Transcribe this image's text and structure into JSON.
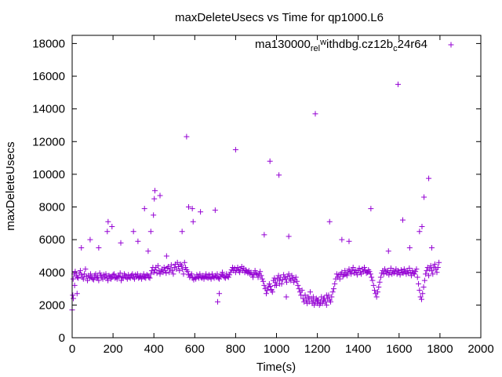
{
  "chart_data": {
    "type": "scatter",
    "title": "maxDeleteUsecs vs Time for qp1000.L6",
    "xlabel": "Time(s)",
    "ylabel": "maxDeleteUsecs",
    "xlim": [
      0,
      2000
    ],
    "ylim": [
      0,
      18500
    ],
    "xticks": [
      0,
      200,
      400,
      600,
      800,
      1000,
      1200,
      1400,
      1600,
      1800,
      2000
    ],
    "yticks": [
      0,
      2000,
      4000,
      6000,
      8000,
      10000,
      12000,
      14000,
      16000,
      18000
    ],
    "xtick_labels": [
      "0",
      "200",
      "400",
      "600",
      "800",
      "1000",
      "1200",
      "1400",
      "1600",
      "1800",
      "2000"
    ],
    "ytick_labels": [
      "0",
      "2000",
      "4000",
      "6000",
      "8000",
      "10000",
      "12000",
      "14000",
      "16000",
      "18000"
    ],
    "legend_position": "top-right",
    "grid": false,
    "series": [
      {
        "name": "ma130000_rel_withdbg.cz12b_c24r64",
        "legend_base": "ma130000",
        "legend_parts": [
          {
            "sub": "rel",
            "text": "ithdbg.cz12b",
            "sup": "w"
          },
          {
            "sub": "c",
            "text": "24r64",
            "sup": ""
          }
        ],
        "color": "#9400d3",
        "marker": "+",
        "x": [
          0,
          5,
          10,
          15,
          20,
          25,
          30,
          35,
          40,
          45,
          50,
          55,
          60,
          65,
          70,
          75,
          80,
          85,
          90,
          95,
          100,
          105,
          110,
          115,
          120,
          125,
          130,
          135,
          140,
          145,
          150,
          155,
          160,
          165,
          170,
          175,
          180,
          185,
          190,
          195,
          200,
          205,
          210,
          215,
          220,
          225,
          230,
          235,
          240,
          245,
          250,
          255,
          260,
          265,
          270,
          275,
          280,
          285,
          290,
          295,
          300,
          305,
          310,
          315,
          320,
          325,
          330,
          335,
          340,
          345,
          350,
          355,
          360,
          365,
          370,
          375,
          380,
          385,
          390,
          395,
          400,
          405,
          410,
          415,
          420,
          425,
          430,
          435,
          440,
          445,
          450,
          455,
          460,
          465,
          470,
          475,
          480,
          485,
          490,
          495,
          500,
          505,
          510,
          515,
          520,
          525,
          530,
          535,
          540,
          545,
          550,
          555,
          560,
          565,
          570,
          575,
          580,
          585,
          590,
          595,
          600,
          605,
          610,
          615,
          620,
          625,
          630,
          635,
          640,
          645,
          650,
          655,
          660,
          665,
          670,
          675,
          680,
          685,
          690,
          695,
          700,
          705,
          710,
          715,
          720,
          725,
          730,
          735,
          740,
          745,
          750,
          755,
          760,
          765,
          770,
          775,
          780,
          785,
          790,
          795,
          800,
          805,
          810,
          815,
          820,
          825,
          830,
          835,
          840,
          845,
          850,
          855,
          860,
          865,
          870,
          875,
          880,
          885,
          890,
          895,
          900,
          905,
          910,
          915,
          920,
          925,
          930,
          935,
          940,
          945,
          950,
          955,
          960,
          965,
          970,
          975,
          980,
          985,
          990,
          995,
          1000,
          1005,
          1010,
          1015,
          1020,
          1025,
          1030,
          1035,
          1040,
          1045,
          1050,
          1055,
          1060,
          1065,
          1070,
          1075,
          1080,
          1085,
          1090,
          1095,
          1100,
          1105,
          1110,
          1115,
          1120,
          1125,
          1130,
          1135,
          1140,
          1145,
          1150,
          1155,
          1160,
          1165,
          1170,
          1175,
          1180,
          1185,
          1190,
          1195,
          1200,
          1205,
          1210,
          1215,
          1220,
          1225,
          1230,
          1235,
          1240,
          1245,
          1250,
          1255,
          1260,
          1265,
          1270,
          1275,
          1280,
          1285,
          1290,
          1295,
          1300,
          1305,
          1310,
          1315,
          1320,
          1325,
          1330,
          1335,
          1340,
          1345,
          1350,
          1355,
          1360,
          1365,
          1370,
          1375,
          1380,
          1385,
          1390,
          1395,
          1400,
          1405,
          1410,
          1415,
          1420,
          1425,
          1430,
          1435,
          1440,
          1445,
          1450,
          1455,
          1460,
          1465,
          1470,
          1475,
          1480,
          1485,
          1490,
          1495,
          1500,
          1505,
          1510,
          1515,
          1520,
          1525,
          1530,
          1535,
          1540,
          1545,
          1550,
          1555,
          1560,
          1565,
          1570,
          1575,
          1580,
          1585,
          1590,
          1595,
          1600,
          1605,
          1610,
          1615,
          1620,
          1625,
          1630,
          1635,
          1640,
          1645,
          1650,
          1655,
          1660,
          1665,
          1670,
          1675,
          1680,
          1685,
          1690,
          1695,
          1700,
          1705,
          1710,
          1715,
          1720,
          1725,
          1730,
          1735,
          1740,
          1745,
          1750,
          1755,
          1760,
          1765,
          1770,
          1775,
          1780,
          1785,
          1790,
          1795,
          3,
          6,
          12,
          24,
          45,
          88,
          130,
          172,
          176,
          195,
          238,
          300,
          322,
          354,
          372,
          385,
          398,
          402,
          405,
          430,
          462,
          538,
          560,
          570,
          588,
          592,
          628,
          700,
          712,
          800,
          940,
          968,
          1012,
          1060,
          1190,
          1260,
          1320,
          1355,
          1462,
          1548,
          1595,
          1618,
          1652,
          1700,
          1712,
          1722,
          1745,
          1760,
          1180,
          1200,
          1215,
          1230,
          1245,
          1140,
          1160,
          720,
          975,
          992,
          1015,
          1048
        ],
        "y": [
          1700,
          3600,
          3900,
          4050,
          3800,
          3700,
          3650,
          3950,
          4100,
          3850,
          3700,
          3600,
          3900,
          4200,
          3750,
          3500,
          3800,
          3650,
          3900,
          3700,
          3600,
          3550,
          3800,
          3900,
          3650,
          3700,
          3500,
          3950,
          3800,
          3700,
          3600,
          3850,
          3700,
          3900,
          3650,
          3500,
          3800,
          3750,
          3600,
          3700,
          3850,
          3900,
          3650,
          3700,
          3600,
          3800,
          3750,
          3950,
          3500,
          3700,
          3650,
          3900,
          3800,
          3700,
          3600,
          3850,
          3700,
          3650,
          3800,
          3900,
          3700,
          3600,
          3850,
          3750,
          3900,
          3650,
          3700,
          3800,
          3600,
          3750,
          3900,
          3700,
          3650,
          3850,
          3800,
          3700,
          3650,
          3900,
          4100,
          4300,
          4000,
          4150,
          4300,
          3950,
          4400,
          4100,
          3900,
          4050,
          4200,
          4000,
          4300,
          4100,
          3950,
          4250,
          4350,
          4000,
          4200,
          4450,
          4100,
          3900,
          4300,
          4500,
          4200,
          4600,
          4350,
          4100,
          4500,
          4400,
          4200,
          3900,
          4600,
          4300,
          4150,
          4050,
          3850,
          3700,
          3800,
          3900,
          3650,
          3550,
          3700,
          3600,
          3850,
          3750,
          3650,
          3900,
          3700,
          3650,
          3800,
          3600,
          3750,
          3900,
          3700,
          3650,
          3850,
          3700,
          3600,
          3900,
          3750,
          3650,
          3800,
          3700,
          3900,
          3650,
          3600,
          3750,
          3850,
          4000,
          3800,
          3700,
          3650,
          3900,
          3750,
          3700,
          3850,
          4000,
          4150,
          4300,
          4100,
          4250,
          4000,
          4150,
          4300,
          4100,
          4000,
          4200,
          4350,
          4100,
          4250,
          4000,
          4150,
          4050,
          3950,
          4100,
          3900,
          4000,
          3850,
          3700,
          3900,
          4100,
          3950,
          3850,
          3700,
          3900,
          4050,
          3800,
          3600,
          3450,
          3200,
          3000,
          2700,
          2900,
          3100,
          3300,
          3150,
          2950,
          2800,
          3500,
          3650,
          3400,
          3200,
          3600,
          3800,
          3500,
          3700,
          3300,
          3550,
          3850,
          3700,
          3600,
          3400,
          3750,
          3900,
          3600,
          3500,
          3800,
          3650,
          3400,
          3550,
          3700,
          3450,
          3200,
          3000,
          2800,
          2600,
          2900,
          2400,
          2200,
          2600,
          2300,
          2100,
          2500,
          2200,
          2800,
          2400,
          2100,
          2300,
          2000,
          2200,
          2400,
          2100,
          2300,
          2000,
          2200,
          2500,
          2100,
          2300,
          2400,
          2200,
          2000,
          2400,
          2600,
          2300,
          2200,
          2500,
          2800,
          3000,
          3300,
          3600,
          3900,
          3700,
          3850,
          3600,
          3900,
          4000,
          3750,
          3850,
          4100,
          3900,
          3800,
          4000,
          4200,
          4050,
          3900,
          4100,
          4300,
          3950,
          4150,
          4000,
          3850,
          4100,
          4250,
          4000,
          3900,
          4200,
          4050,
          4300,
          4100,
          3950,
          4000,
          4150,
          4050,
          3900,
          3700,
          3500,
          3200,
          2900,
          2700,
          2500,
          2800,
          3100,
          3400,
          3700,
          3950,
          4100,
          3900,
          4200,
          4050,
          3950,
          4100,
          3850,
          4000,
          4250,
          3900,
          4100,
          3950,
          4050,
          4200,
          3900,
          4100,
          4000,
          3850,
          4150,
          4000,
          3950,
          4200,
          4050,
          3900,
          4100,
          3950,
          4250,
          4000,
          3800,
          4100,
          3950,
          3900,
          4050,
          4200,
          3700,
          3300,
          2900,
          2500,
          2350,
          2700,
          3100,
          3500,
          3900,
          4100,
          4300,
          3800,
          4200,
          4400,
          4100,
          3900,
          4300,
          4500,
          4200,
          4000,
          4300,
          4600,
          2600,
          2400,
          3200,
          2700,
          5500,
          6000,
          5500,
          6500,
          7100,
          6800,
          5800,
          6500,
          5900,
          7900,
          5300,
          6500,
          7500,
          8500,
          9000,
          8700,
          5000,
          6500,
          12300,
          8000,
          7900,
          7100,
          7700,
          7800,
          2200,
          11500,
          6300,
          10800,
          9950,
          6200,
          13700,
          7100,
          6000,
          5900,
          7900,
          5300,
          15500,
          7200,
          5500,
          6500,
          6800,
          8600,
          9750,
          5500,
          2500,
          2300,
          2100,
          2400,
          2600,
          2600,
          2400,
          2700,
          2900,
          3200,
          3300,
          2500
        ]
      }
    ]
  }
}
